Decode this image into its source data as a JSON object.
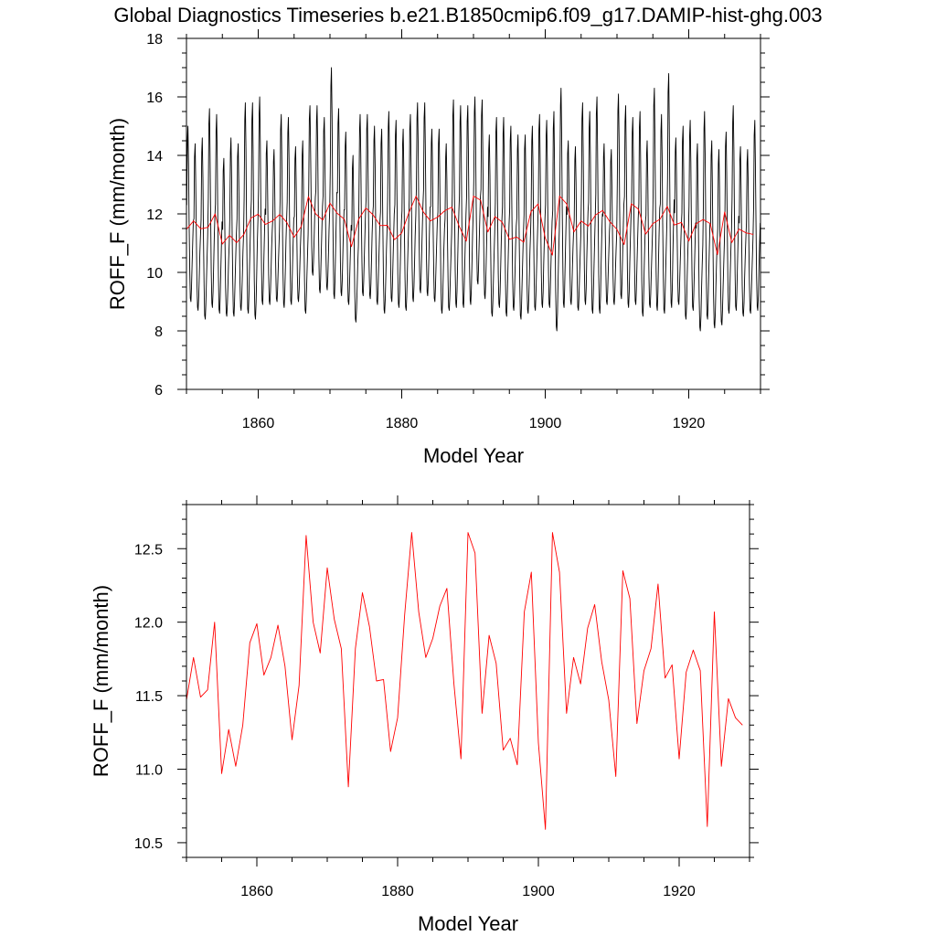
{
  "title": "Global Diagnostics Timeseries b.e21.B1850cmip6.f09_g17.DAMIP-hist-ghg.003",
  "colors": {
    "monthly": "#000000",
    "annual": "#ff0000",
    "axes": "#000000"
  },
  "chart_data": [
    {
      "type": "line",
      "xlabel": "Model Year",
      "ylabel": "ROFF_F (mm/month)",
      "xlim": [
        1850,
        1930
      ],
      "ylim": [
        6,
        18
      ],
      "x_major_ticks": [
        1860,
        1880,
        1900,
        1920
      ],
      "x_tick_labels": [
        "1860",
        "1880",
        "1900",
        "1920"
      ],
      "y_major_ticks": [
        6,
        8,
        10,
        12,
        14,
        16,
        18
      ],
      "y_tick_labels": [
        "6",
        "8",
        "10",
        "12",
        "14",
        "16",
        "18"
      ],
      "series": [
        {
          "kind": "monthly",
          "color": "#000000",
          "start": 1850.04,
          "step": 0.083333,
          "annual_max": [
            15.0,
            14.4,
            14.6,
            15.6,
            15.4,
            13.9,
            14.6,
            14.4,
            15.8,
            15.8,
            16.0,
            14.5,
            14.2,
            15.4,
            15.3,
            14.3,
            14.5,
            15.7,
            15.7,
            15.3,
            17.0,
            15.6,
            14.8,
            14.0,
            15.4,
            15.4,
            15.0,
            14.9,
            15.5,
            15.2,
            14.9,
            15.4,
            15.8,
            15.8,
            14.9,
            14.9,
            14.4,
            15.9,
            15.7,
            15.7,
            16.0,
            15.9,
            14.7,
            15.3,
            15.3,
            15.0,
            14.7,
            14.7,
            15.0,
            15.4,
            15.2,
            15.5,
            16.3,
            14.5,
            14.3,
            15.8,
            15.5,
            16.0,
            14.4,
            14.2,
            16.1,
            15.7,
            15.3,
            15.5,
            14.5,
            16.3,
            15.4,
            16.8,
            14.6,
            15.0,
            15.2,
            14.4,
            15.5,
            14.5,
            14.2,
            14.8,
            15.7,
            14.3,
            14.2,
            15.2
          ],
          "annual_min": [
            9.0,
            8.7,
            8.4,
            8.8,
            8.6,
            8.5,
            8.5,
            8.7,
            8.6,
            8.4,
            8.9,
            8.9,
            9.0,
            8.8,
            8.9,
            9.0,
            8.6,
            9.9,
            9.3,
            9.4,
            9.1,
            9.2,
            8.9,
            8.3,
            9.2,
            9.1,
            8.9,
            8.6,
            9.0,
            8.8,
            8.7,
            9.0,
            9.3,
            9.2,
            9.0,
            8.6,
            8.7,
            8.8,
            8.8,
            8.9,
            9.6,
            9.1,
            8.5,
            8.8,
            8.5,
            8.7,
            8.4,
            8.6,
            8.7,
            8.8,
            8.8,
            8.0,
            8.8,
            8.9,
            8.7,
            8.9,
            8.6,
            8.6,
            8.9,
            8.9,
            9.1,
            8.8,
            8.9,
            8.5,
            8.8,
            8.7,
            8.6,
            8.8,
            8.9,
            8.4,
            8.7,
            8.0,
            8.4,
            8.1,
            8.2,
            8.6,
            8.7,
            8.5,
            8.6,
            8.7
          ]
        },
        {
          "kind": "annual",
          "color": "#ff0000",
          "x": [
            1850,
            1851,
            1852,
            1853,
            1854,
            1855,
            1856,
            1857,
            1858,
            1859,
            1860,
            1861,
            1862,
            1863,
            1864,
            1865,
            1866,
            1867,
            1868,
            1869,
            1870,
            1871,
            1872,
            1873,
            1874,
            1875,
            1876,
            1877,
            1878,
            1879,
            1880,
            1881,
            1882,
            1883,
            1884,
            1885,
            1886,
            1887,
            1888,
            1889,
            1890,
            1891,
            1892,
            1893,
            1894,
            1895,
            1896,
            1897,
            1898,
            1899,
            1900,
            1901,
            1902,
            1903,
            1904,
            1905,
            1906,
            1907,
            1908,
            1909,
            1910,
            1911,
            1912,
            1913,
            1914,
            1915,
            1916,
            1917,
            1918,
            1919,
            1920,
            1921,
            1922,
            1923,
            1924,
            1925,
            1926,
            1927,
            1928,
            1929
          ],
          "values": [
            11.47,
            11.76,
            11.49,
            11.54,
            12.0,
            10.97,
            11.27,
            11.02,
            11.3,
            11.86,
            11.99,
            11.64,
            11.76,
            11.98,
            11.7,
            11.2,
            11.57,
            12.59,
            12.0,
            11.79,
            12.37,
            12.02,
            11.82,
            10.88,
            11.82,
            12.2,
            11.97,
            11.6,
            11.61,
            11.12,
            11.35,
            12.05,
            12.61,
            12.07,
            11.76,
            11.89,
            12.11,
            12.23,
            11.58,
            11.07,
            12.61,
            12.47,
            11.38,
            11.91,
            11.72,
            11.13,
            11.21,
            11.03,
            12.07,
            12.34,
            11.18,
            10.59,
            12.61,
            12.34,
            11.38,
            11.76,
            11.58,
            11.96,
            12.12,
            11.73,
            11.47,
            10.95,
            12.35,
            12.16,
            11.31,
            11.67,
            11.82,
            12.26,
            11.62,
            11.71,
            11.07,
            11.66,
            11.81,
            11.67,
            10.61,
            12.07,
            11.02,
            11.48,
            11.35,
            11.3
          ]
        }
      ]
    },
    {
      "type": "line",
      "xlabel": "Model Year",
      "ylabel": "ROFF_F (mm/month)",
      "xlim": [
        1850,
        1930
      ],
      "ylim": [
        10.4,
        12.8
      ],
      "x_major_ticks": [
        1860,
        1880,
        1900,
        1920
      ],
      "x_tick_labels": [
        "1860",
        "1880",
        "1900",
        "1920"
      ],
      "y_major_ticks": [
        10.5,
        11.0,
        11.5,
        12.0,
        12.5
      ],
      "y_tick_labels": [
        "10.5",
        "11.0",
        "11.5",
        "12.0",
        "12.5"
      ],
      "series": [
        {
          "kind": "annual",
          "color": "#ff0000",
          "x": [
            1850,
            1851,
            1852,
            1853,
            1854,
            1855,
            1856,
            1857,
            1858,
            1859,
            1860,
            1861,
            1862,
            1863,
            1864,
            1865,
            1866,
            1867,
            1868,
            1869,
            1870,
            1871,
            1872,
            1873,
            1874,
            1875,
            1876,
            1877,
            1878,
            1879,
            1880,
            1881,
            1882,
            1883,
            1884,
            1885,
            1886,
            1887,
            1888,
            1889,
            1890,
            1891,
            1892,
            1893,
            1894,
            1895,
            1896,
            1897,
            1898,
            1899,
            1900,
            1901,
            1902,
            1903,
            1904,
            1905,
            1906,
            1907,
            1908,
            1909,
            1910,
            1911,
            1912,
            1913,
            1914,
            1915,
            1916,
            1917,
            1918,
            1919,
            1920,
            1921,
            1922,
            1923,
            1924,
            1925,
            1926,
            1927,
            1928,
            1929
          ],
          "values": [
            11.47,
            11.76,
            11.49,
            11.54,
            12.0,
            10.97,
            11.27,
            11.02,
            11.3,
            11.86,
            11.99,
            11.64,
            11.76,
            11.98,
            11.7,
            11.2,
            11.57,
            12.59,
            12.0,
            11.79,
            12.37,
            12.02,
            11.82,
            10.88,
            11.82,
            12.2,
            11.97,
            11.6,
            11.61,
            11.12,
            11.35,
            12.05,
            12.61,
            12.07,
            11.76,
            11.89,
            12.11,
            12.23,
            11.58,
            11.07,
            12.61,
            12.47,
            11.38,
            11.91,
            11.72,
            11.13,
            11.21,
            11.03,
            12.07,
            12.34,
            11.18,
            10.59,
            12.61,
            12.34,
            11.38,
            11.76,
            11.58,
            11.96,
            12.12,
            11.73,
            11.47,
            10.95,
            12.35,
            12.16,
            11.31,
            11.67,
            11.82,
            12.26,
            11.62,
            11.71,
            11.07,
            11.66,
            11.81,
            11.67,
            10.61,
            12.07,
            11.02,
            11.48,
            11.35,
            11.3
          ]
        }
      ]
    }
  ]
}
